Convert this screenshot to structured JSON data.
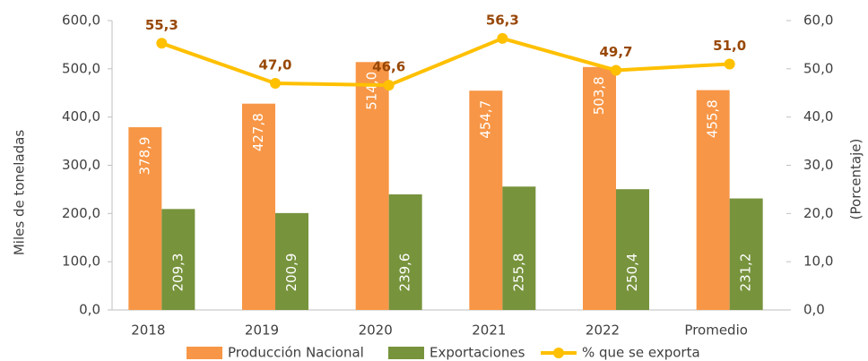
{
  "chart_data": {
    "type": "bar",
    "categories": [
      "2018",
      "2019",
      "2020",
      "2021",
      "2022",
      "Promedio"
    ],
    "y_label": "Miles de toneladas",
    "y2_label": "(Porcentaje)",
    "ylim": [
      0,
      600
    ],
    "yticks": [
      {
        "value": 0,
        "label": "0,0"
      },
      {
        "value": 100,
        "label": "100,0"
      },
      {
        "value": 200,
        "label": "200,0"
      },
      {
        "value": 300,
        "label": "300,0"
      },
      {
        "value": 400,
        "label": "400,0"
      },
      {
        "value": 500,
        "label": "500,0"
      },
      {
        "value": 600,
        "label": "600,0"
      }
    ],
    "y2lim": [
      0,
      60
    ],
    "y2ticks": [
      {
        "value": 0,
        "label": "0,0"
      },
      {
        "value": 10,
        "label": "10,0"
      },
      {
        "value": 20,
        "label": "20,0"
      },
      {
        "value": 30,
        "label": "30,0"
      },
      {
        "value": 40,
        "label": "40,0"
      },
      {
        "value": 50,
        "label": "50,0"
      },
      {
        "value": 60,
        "label": "60,0"
      }
    ],
    "legend": "bottom",
    "series": [
      {
        "name": "Producción Nacional",
        "type": "bar",
        "color": "#f79646",
        "values": [
          378.9,
          427.8,
          514.0,
          454.7,
          503.8,
          455.8
        ],
        "value_labels": [
          "378,9",
          "427,8",
          "514,0",
          "454,7",
          "503,8",
          "455,8"
        ]
      },
      {
        "name": "Exportaciones",
        "type": "bar",
        "color": "#77933c",
        "values": [
          209.3,
          200.9,
          239.6,
          255.8,
          250.4,
          231.2
        ],
        "value_labels": [
          "209,3",
          "200,9",
          "239,6",
          "255,8",
          "250,4",
          "231,2"
        ]
      },
      {
        "name": "% que se exporta",
        "type": "line",
        "axis": "y2",
        "color": "#ffc000",
        "values": [
          55.3,
          47.0,
          46.6,
          56.3,
          49.7,
          51.0
        ],
        "value_labels": [
          "55,3",
          "47,0",
          "46,6",
          "56,3",
          "49,7",
          "51,0"
        ]
      }
    ]
  }
}
